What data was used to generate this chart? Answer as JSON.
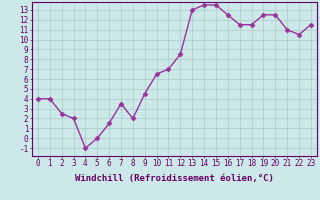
{
  "x": [
    0,
    1,
    2,
    3,
    4,
    5,
    6,
    7,
    8,
    9,
    10,
    11,
    12,
    13,
    14,
    15,
    16,
    17,
    18,
    19,
    20,
    21,
    22,
    23
  ],
  "y": [
    4,
    4,
    2.5,
    2,
    -1,
    0,
    1.5,
    3.5,
    2,
    4.5,
    6.5,
    7,
    8.5,
    13,
    13.5,
    13.5,
    12.5,
    11.5,
    11.5,
    12.5,
    12.5,
    11,
    10.5,
    11.5
  ],
  "color": "#993399",
  "bg_color": "#cce8e8",
  "grid_color": "#aacccc",
  "xlabel": "Windchill (Refroidissement éolien,°C)",
  "ylim": [
    -1.8,
    13.8
  ],
  "xlim": [
    -0.5,
    23.5
  ],
  "yticks": [
    -1,
    0,
    1,
    2,
    3,
    4,
    5,
    6,
    7,
    8,
    9,
    10,
    11,
    12,
    13
  ],
  "xticks": [
    0,
    1,
    2,
    3,
    4,
    5,
    6,
    7,
    8,
    9,
    10,
    11,
    12,
    13,
    14,
    15,
    16,
    17,
    18,
    19,
    20,
    21,
    22,
    23
  ],
  "xtick_labels": [
    "0",
    "1",
    "2",
    "3",
    "4",
    "5",
    "6",
    "7",
    "8",
    "9",
    "10",
    "11",
    "12",
    "13",
    "14",
    "15",
    "16",
    "17",
    "18",
    "19",
    "20",
    "21",
    "22",
    "23"
  ],
  "ytick_labels": [
    "-1",
    "0",
    "1",
    "2",
    "3",
    "4",
    "5",
    "6",
    "7",
    "8",
    "9",
    "10",
    "11",
    "12",
    "13"
  ],
  "marker": "D",
  "markersize": 2.5,
  "linewidth": 1.0,
  "axis_color": "#660066",
  "tick_fontsize": 5.5,
  "xlabel_fontsize": 6.5,
  "spine_color": "#660066"
}
